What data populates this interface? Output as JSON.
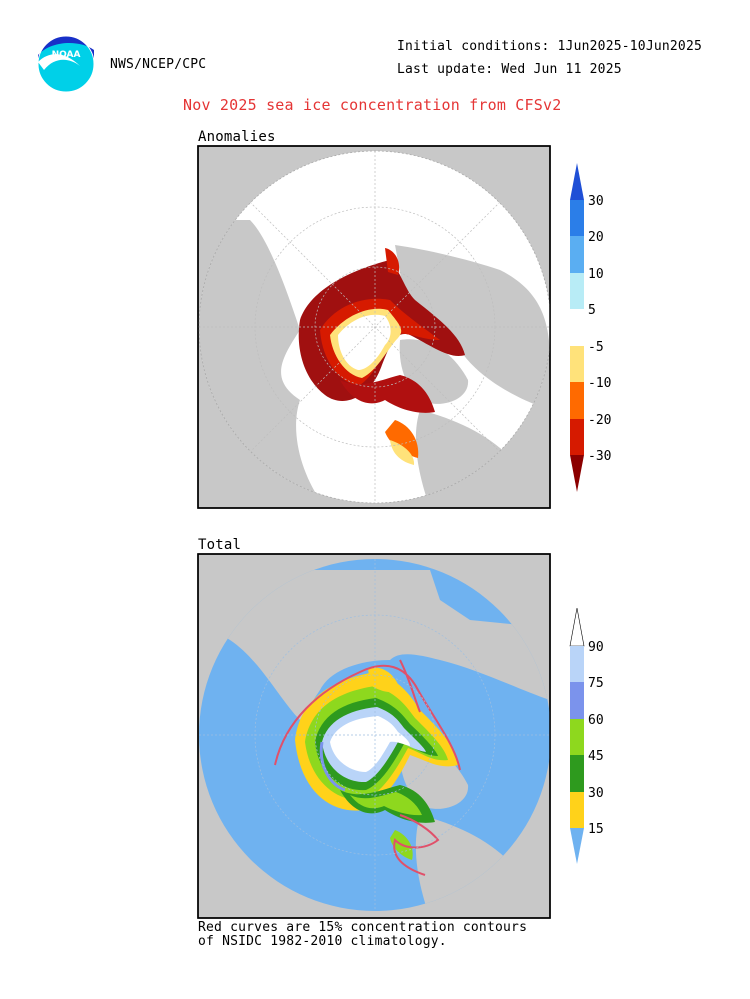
{
  "header": {
    "agency": "NWS/NCEP/CPC",
    "logo_text": "NOAA",
    "initial_conditions": "Initial conditions: 1Jun2025-10Jun2025",
    "last_update": "Last update: Wed Jun 11 2025",
    "title": "Nov 2025 sea ice concentration from CFSv2"
  },
  "panels": {
    "anomalies": {
      "label": "Anomalies",
      "colorbar": {
        "ticks": [
          "30",
          "20",
          "10",
          "5",
          "-5",
          "-10",
          "-20",
          "-30"
        ],
        "colors": [
          "#1f4fd6",
          "#2b7ee8",
          "#5aaef2",
          "#b8ecf6",
          "#ffffff",
          "#ffe27a",
          "#ff6a00",
          "#d61a00",
          "#8b0000"
        ]
      }
    },
    "total": {
      "label": "Total",
      "colorbar": {
        "ticks": [
          "90",
          "75",
          "60",
          "45",
          "30",
          "15"
        ],
        "colors": [
          "#6fb2f0",
          "#ffd21a",
          "#2e9a1e",
          "#8ed81e",
          "#7b93ec",
          "#b9d4f8",
          "#ffffff"
        ]
      }
    }
  },
  "colors": {
    "land": "#c8c8c8",
    "ocean": "#ffffff",
    "water_total": "#6fb2f0",
    "title": "#e53535",
    "climatology_contour": "#e0506a"
  },
  "footnote": {
    "line1": "Red curves are 15% concentration contours",
    "line2": "of NSIDC 1982-2010 climatology."
  }
}
